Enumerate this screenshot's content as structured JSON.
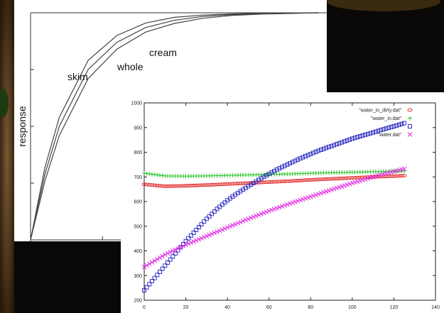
{
  "chart_data": [
    {
      "type": "line",
      "title": "",
      "xlabel": "",
      "ylabel": "response",
      "xlim": [
        0,
        100
      ],
      "ylim": [
        0,
        1
      ],
      "grid": false,
      "legend": "none",
      "curve_labels": [
        "skim",
        "whole",
        "cream"
      ],
      "series": [
        {
          "name": "skim",
          "x": [
            0,
            5,
            10,
            20,
            30,
            40,
            50,
            60,
            70,
            80,
            90,
            100
          ],
          "y": [
            0,
            0.32,
            0.54,
            0.79,
            0.9,
            0.955,
            0.98,
            0.99,
            0.995,
            0.998,
            0.999,
            1.0
          ]
        },
        {
          "name": "whole",
          "x": [
            0,
            5,
            10,
            20,
            30,
            40,
            50,
            60,
            70,
            80,
            90,
            100
          ],
          "y": [
            0,
            0.29,
            0.5,
            0.75,
            0.87,
            0.935,
            0.967,
            0.984,
            0.992,
            0.996,
            0.998,
            1.0
          ]
        },
        {
          "name": "cream",
          "x": [
            0,
            5,
            10,
            20,
            30,
            40,
            50,
            60,
            70,
            80,
            90,
            100
          ],
          "y": [
            0,
            0.26,
            0.46,
            0.71,
            0.84,
            0.915,
            0.953,
            0.976,
            0.988,
            0.994,
            0.997,
            1.0
          ]
        }
      ]
    },
    {
      "type": "scatter",
      "title": "",
      "xlabel": "",
      "ylabel": "",
      "xlim": [
        0,
        140
      ],
      "ylim": [
        200,
        1000
      ],
      "x_ticks": [
        "0",
        "20",
        "40",
        "60",
        "80",
        "100",
        "120",
        "140"
      ],
      "y_ticks": [
        "200",
        "300",
        "400",
        "500",
        "600",
        "700",
        "800",
        "900",
        "1000"
      ],
      "grid": false,
      "legend": "top-right",
      "series": [
        {
          "name": "\"water_in_dirty.dat\"",
          "marker": "circle",
          "color": "#e02020",
          "x": [
            0,
            10,
            20,
            30,
            40,
            50,
            60,
            70,
            80,
            90,
            100,
            110,
            120,
            125
          ],
          "y": [
            670,
            662,
            664,
            667,
            671,
            675,
            679,
            683,
            688,
            692,
            696,
            700,
            703,
            705
          ]
        },
        {
          "name": "\"water_in.dat\"",
          "marker": "plus",
          "color": "#20c020",
          "x": [
            0,
            10,
            20,
            30,
            40,
            50,
            60,
            70,
            80,
            90,
            100,
            110,
            120,
            125
          ],
          "y": [
            715,
            704,
            703,
            704,
            706,
            708,
            710,
            712,
            715,
            717,
            719,
            721,
            723,
            724
          ]
        },
        {
          "name": "\"",
          "marker": "square",
          "color": "#2020c0",
          "x": [
            0,
            5,
            10,
            15,
            20,
            25,
            30,
            35,
            40,
            45,
            50,
            55,
            60,
            65,
            70,
            75,
            80,
            85,
            90,
            95,
            100,
            105,
            110,
            115,
            120,
            125
          ],
          "y": [
            240,
            290,
            340,
            390,
            440,
            485,
            530,
            570,
            605,
            635,
            662,
            688,
            712,
            735,
            755,
            775,
            793,
            810,
            825,
            840,
            855,
            868,
            880,
            893,
            905,
            918
          ]
        },
        {
          "name": "\"water.dat\"",
          "marker": "cross",
          "color": "#e020e0",
          "x": [
            0,
            10,
            20,
            30,
            40,
            50,
            60,
            70,
            80,
            90,
            100,
            110,
            120,
            125
          ],
          "y": [
            335,
            385,
            425,
            460,
            495,
            530,
            562,
            592,
            620,
            648,
            675,
            700,
            722,
            733
          ]
        }
      ]
    }
  ]
}
